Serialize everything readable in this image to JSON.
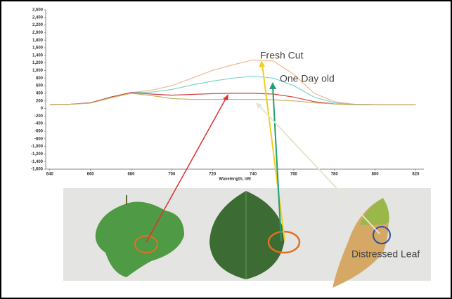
{
  "chart_data": {
    "type": "line",
    "x_label": "Wavelength, nM",
    "x": [
      640,
      650,
      660,
      670,
      680,
      690,
      700,
      710,
      720,
      730,
      740,
      750,
      760,
      770,
      780,
      790,
      800,
      810,
      820
    ],
    "series": [
      {
        "color": "#f0b890",
        "values": [
          100,
          110,
          150,
          300,
          420,
          480,
          600,
          800,
          1000,
          1150,
          1280,
          1250,
          900,
          400,
          180,
          110,
          100,
          100,
          100
        ]
      },
      {
        "color": "#7fd3d0",
        "values": [
          100,
          110,
          150,
          300,
          420,
          430,
          500,
          620,
          720,
          800,
          850,
          800,
          600,
          300,
          150,
          110,
          100,
          100,
          100
        ]
      },
      {
        "color": "#d04040",
        "values": [
          100,
          110,
          150,
          300,
          420,
          380,
          350,
          370,
          390,
          400,
          400,
          380,
          300,
          180,
          120,
          100,
          100,
          100,
          100
        ]
      },
      {
        "color": "#c8b060",
        "values": [
          100,
          110,
          140,
          280,
          400,
          340,
          260,
          240,
          240,
          240,
          240,
          230,
          200,
          150,
          120,
          100,
          100,
          100,
          100
        ]
      }
    ],
    "xlim": [
      638,
      824
    ],
    "ylim": [
      -1600,
      2600
    ],
    "xticks": [
      640,
      660,
      680,
      700,
      720,
      740,
      760,
      780,
      800,
      820
    ],
    "yticks": [
      {
        "value": 2600,
        "label": "2,600"
      },
      {
        "value": 2400,
        "label": "2,400"
      },
      {
        "value": 2200,
        "label": "2,200"
      },
      {
        "value": 2000,
        "label": "2,000"
      },
      {
        "value": 1800,
        "label": "1,800"
      },
      {
        "value": 1600,
        "label": "1,600"
      },
      {
        "value": 1400,
        "label": "1,400"
      },
      {
        "value": 1200,
        "label": "1,200"
      },
      {
        "value": 1000,
        "label": "1,000"
      },
      800,
      600,
      400,
      200,
      0,
      -200,
      -400,
      -600,
      -800,
      {
        "value": -1000,
        "label": "-1,000"
      },
      {
        "value": -1200,
        "label": "-1,200"
      },
      {
        "value": -1400,
        "label": "-1,400"
      },
      {
        "value": -1600,
        "label": "-1,600"
      }
    ],
    "annotations": [
      "Fresh Cut",
      "One Day old",
      "Distressed Leaf"
    ]
  }
}
